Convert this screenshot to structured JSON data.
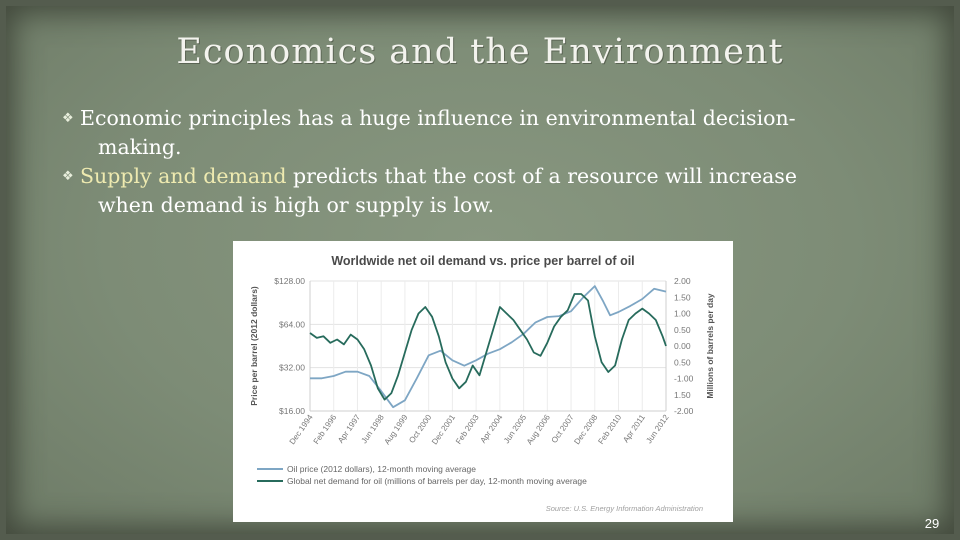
{
  "slide": {
    "title": "Economics and the Environment",
    "bullets": [
      {
        "line1": "Economic principles has a huge influence in environmental decision-",
        "line2": "making."
      },
      {
        "highlight": "Supply and demand",
        "line1_rest": " predicts that the cost of a resource will increase",
        "line2": "when demand is high or supply is low."
      }
    ],
    "page_number": "29"
  },
  "colors": {
    "price": "#7ea6c4",
    "demand": "#276b5c",
    "highlight": "#eeeab0"
  },
  "chart_data": {
    "type": "line",
    "title": "Worldwide net oil demand vs. price per barrel of oil",
    "ylabel_left": "Price per barrel (2012 dollars)",
    "ylabel_right": "Millions of barrels per day",
    "yticks_left": [
      "$128.00",
      "$64.00",
      "$32.00",
      "$16.00"
    ],
    "yticks_right": [
      "2.00",
      "1.50",
      "1.00",
      "0.50",
      "0.00",
      "0.50",
      "-1.00",
      "1.50",
      "-2.00"
    ],
    "y_left_scale": "log2",
    "ylim_left": [
      16,
      128
    ],
    "ylim_right": [
      -2,
      2
    ],
    "xlim": [
      1994.917,
      2012.417
    ],
    "x_tick_labels": [
      "Dec 1994",
      "Feb 1996",
      "Apr 1997",
      "Jun 1998",
      "Aug 1999",
      "Oct 2000",
      "Dec 2001",
      "Feb 2003",
      "Apr 2004",
      "Jun 2005",
      "Aug 2006",
      "Oct 2007",
      "Dec 2008",
      "Feb 2010",
      "Apr 2011",
      "Jun 2012"
    ],
    "x_tick_values": [
      1994.917,
      1996.083,
      1997.25,
      1998.417,
      1999.583,
      2000.75,
      2001.917,
      2003.083,
      2004.25,
      2005.417,
      2006.583,
      2007.75,
      2008.917,
      2010.083,
      2011.25,
      2012.417
    ],
    "legend": [
      "Oil price (2012 dollars), 12-month moving average",
      "Global net demand for oil (millions of barrels per day, 12-month moving average"
    ],
    "legend_position": "bottom-left",
    "source": "Source: U.S. Energy Information Administration",
    "series": [
      {
        "name": "Oil price (2012 dollars), 12-month moving average",
        "axis": "left",
        "x": [
          1994.917,
          1995.5,
          1996.083,
          1996.667,
          1997.25,
          1997.833,
          1998.417,
          1998.75,
          1999.0,
          1999.583,
          2000.167,
          2000.75,
          2001.333,
          2001.917,
          2002.5,
          2003.083,
          2003.667,
          2004.25,
          2004.833,
          2005.417,
          2006.0,
          2006.583,
          2007.167,
          2007.75,
          2008.333,
          2008.917,
          2009.333,
          2009.667,
          2010.083,
          2010.667,
          2011.25,
          2011.833,
          2012.417
        ],
        "y": [
          27,
          27,
          28,
          30,
          30,
          28,
          22,
          19,
          17,
          19,
          27,
          39,
          42,
          36,
          33,
          36,
          40,
          43,
          48,
          55,
          66,
          72,
          73,
          79,
          98,
          118,
          92,
          74,
          78,
          86,
          96,
          113,
          108
        ]
      },
      {
        "name": "Global net demand for oil (millions of barrels per day, 12-month moving average",
        "axis": "right",
        "x": [
          1994.917,
          1995.25,
          1995.583,
          1995.917,
          1996.25,
          1996.583,
          1996.917,
          1997.25,
          1997.583,
          1997.917,
          1998.25,
          1998.583,
          1998.917,
          1999.25,
          1999.583,
          1999.917,
          2000.25,
          2000.583,
          2000.917,
          2001.25,
          2001.583,
          2001.917,
          2002.25,
          2002.583,
          2002.917,
          2003.25,
          2003.583,
          2003.917,
          2004.25,
          2004.583,
          2004.917,
          2005.25,
          2005.583,
          2005.917,
          2006.25,
          2006.583,
          2006.917,
          2007.25,
          2007.583,
          2007.917,
          2008.25,
          2008.583,
          2008.917,
          2009.25,
          2009.583,
          2009.917,
          2010.25,
          2010.583,
          2010.917,
          2011.25,
          2011.583,
          2011.917,
          2012.25,
          2012.417
        ],
        "y": [
          0.4,
          0.25,
          0.3,
          0.1,
          0.2,
          0.05,
          0.35,
          0.2,
          -0.1,
          -0.6,
          -1.3,
          -1.65,
          -1.45,
          -0.9,
          -0.2,
          0.5,
          1.0,
          1.2,
          0.9,
          0.3,
          -0.5,
          -1.0,
          -1.3,
          -1.1,
          -0.6,
          -0.9,
          -0.2,
          0.5,
          1.2,
          1.0,
          0.8,
          0.5,
          0.2,
          -0.2,
          -0.3,
          0.1,
          0.6,
          0.9,
          1.1,
          1.6,
          1.6,
          1.4,
          0.3,
          -0.5,
          -0.8,
          -0.6,
          0.2,
          0.8,
          1.0,
          1.15,
          1.0,
          0.8,
          0.3,
          0.0
        ]
      }
    ]
  }
}
